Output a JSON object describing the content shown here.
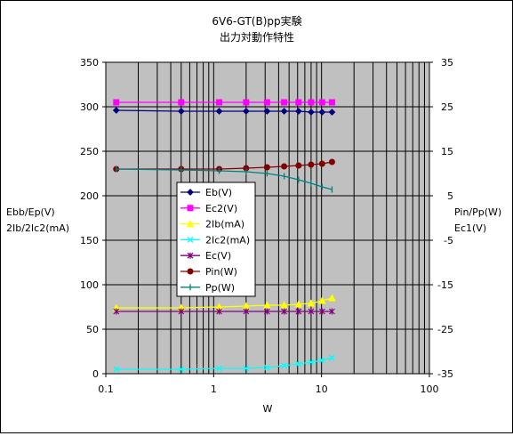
{
  "chart_data": {
    "type": "line",
    "title": [
      "6V6-GT(B)pp実験",
      "出力対動作特性"
    ],
    "xlabel": "W",
    "xscale": "log",
    "xlim": [
      0.1,
      100
    ],
    "x_ticks": [
      {
        "v": 0.1,
        "label": "0.1"
      },
      {
        "v": 1,
        "label": "1"
      },
      {
        "v": 10,
        "label": "10"
      },
      {
        "v": 100,
        "label": "100"
      }
    ],
    "ylabel_left": [
      "Ebb/Ep(V)",
      "2Ib/2Ic2(mA)"
    ],
    "ylim_left": [
      0,
      350
    ],
    "yticks_left": [
      0,
      50,
      100,
      150,
      200,
      250,
      300,
      350
    ],
    "ylabel_right": [
      "Pin/Pp(W)",
      "Ec1(V)"
    ],
    "ylim_right": [
      -35,
      35
    ],
    "yticks_right": [
      -35,
      -25,
      -15,
      -5,
      5,
      15,
      25,
      35
    ],
    "grid": true,
    "plot_background": "#c0c0c0",
    "legend_position": "center-left",
    "series": [
      {
        "name": "Eb(V)",
        "axis": "left",
        "color": "#000080",
        "marker": "diamond",
        "x": [
          0.125,
          0.5,
          1.125,
          2,
          3.125,
          4.5,
          6.125,
          8,
          10.125,
          12.5
        ],
        "y": [
          296,
          295,
          295,
          295,
          295,
          295,
          295,
          294,
          294,
          294
        ]
      },
      {
        "name": "Ec2(V)",
        "axis": "left",
        "color": "#ff00ff",
        "marker": "square",
        "x": [
          0.125,
          0.5,
          1.125,
          2,
          3.125,
          4.5,
          6.125,
          8,
          10.125,
          12.5
        ],
        "y": [
          305,
          305,
          305,
          305,
          305,
          305,
          305,
          305,
          305,
          305
        ]
      },
      {
        "name": "2Ib(mA)",
        "axis": "left",
        "color": "#ffff00",
        "marker": "triangle",
        "x": [
          0.125,
          0.5,
          1.125,
          2,
          3.125,
          4.5,
          6.125,
          8,
          10.125,
          12.5
        ],
        "y": [
          74,
          74,
          75,
          76,
          77,
          77,
          78,
          79,
          82,
          85
        ]
      },
      {
        "name": "2Ic2(mA)",
        "axis": "left",
        "color": "#00ffff",
        "marker": "x",
        "x": [
          0.125,
          0.5,
          1.125,
          2,
          3.125,
          4.5,
          6.125,
          8,
          10.125,
          12.5
        ],
        "y": [
          5,
          5,
          6,
          6,
          7,
          9,
          11,
          13,
          15,
          18
        ]
      },
      {
        "name": "Ec(V)",
        "axis": "left",
        "color": "#800080",
        "marker": "star",
        "x": [
          0.125,
          0.5,
          1.125,
          2,
          3.125,
          4.5,
          6.125,
          8,
          10.125,
          12.5
        ],
        "y": [
          70,
          70,
          70,
          70,
          70,
          70,
          70,
          70,
          70,
          70
        ]
      },
      {
        "name": "Pin(W)",
        "axis": "left",
        "color": "#800000",
        "marker": "circle",
        "x": [
          0.125,
          0.5,
          1.125,
          2,
          3.125,
          4.5,
          6.125,
          8,
          10.125,
          12.5
        ],
        "y": [
          230,
          230,
          230,
          231,
          232,
          233,
          234,
          235,
          236,
          238
        ]
      },
      {
        "name": "Pp(W)",
        "axis": "left",
        "color": "#008080",
        "marker": "plus",
        "x": [
          0.125,
          0.5,
          1.125,
          2,
          3.125,
          4.5,
          6.125,
          8,
          10.125,
          12.5
        ],
        "y": [
          230,
          229,
          228,
          227,
          225,
          222,
          218,
          214,
          210,
          207
        ]
      }
    ]
  }
}
